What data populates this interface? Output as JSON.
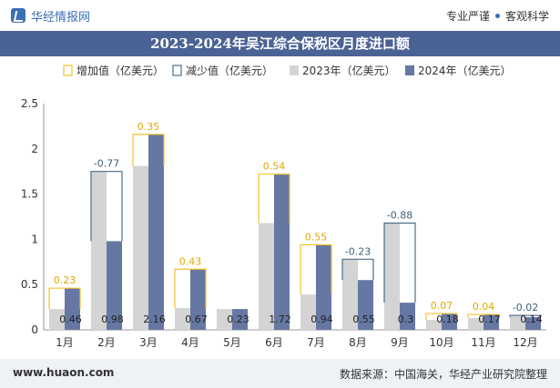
{
  "header": {
    "brand": "华经情报网",
    "tagline_left": "专业严谨",
    "tagline_right": "客观科学"
  },
  "title": "2023-2024年吴江综合保税区月度进口额",
  "footer": {
    "url": "www.huaon.com",
    "source": "数据来源：中国海关，华经产业研究院整理"
  },
  "colors": {
    "increase": "#f2c12e",
    "decrease": "#4a6f8a",
    "y2023": "#d4d4d4",
    "y2024": "#6677a3",
    "title_bg": "#4b6294"
  },
  "chart_data": {
    "type": "bar",
    "legend": [
      "增加值（亿美元）",
      "减少值（亿美元）",
      "2023年（亿美元）",
      "2024年（亿美元）"
    ],
    "legend_position": "top",
    "categories": [
      "1月",
      "2月",
      "3月",
      "4月",
      "5月",
      "6月",
      "7月",
      "8月",
      "9月",
      "10月",
      "11月",
      "12月"
    ],
    "series": [
      {
        "name": "2023年（亿美元）",
        "values": [
          0.23,
          1.75,
          1.81,
          0.24,
          0.23,
          1.18,
          0.39,
          0.78,
          1.18,
          0.11,
          0.13,
          0.16
        ]
      },
      {
        "name": "2024年（亿美元）",
        "values": [
          0.46,
          0.98,
          2.16,
          0.67,
          0.23,
          1.72,
          0.94,
          0.55,
          0.3,
          0.18,
          0.17,
          0.14
        ]
      }
    ],
    "changes": [
      "0.23",
      "-0.77",
      "0.35",
      "0.43",
      "",
      "0.54",
      "0.55",
      "-0.23",
      "-0.88",
      "0.07",
      "0.04",
      "-0.02"
    ],
    "value_labels_2024": [
      "0.46",
      "0.98",
      "2.16",
      "0.67",
      "0.23",
      "1.72",
      "0.94",
      "0.55",
      "0.3",
      "0.18",
      "0.17",
      "0.14"
    ],
    "y_ticks": [
      "0",
      "0.5",
      "1",
      "1.5",
      "2",
      "2.5"
    ],
    "ylim": [
      0,
      2.5
    ],
    "grid": false
  }
}
